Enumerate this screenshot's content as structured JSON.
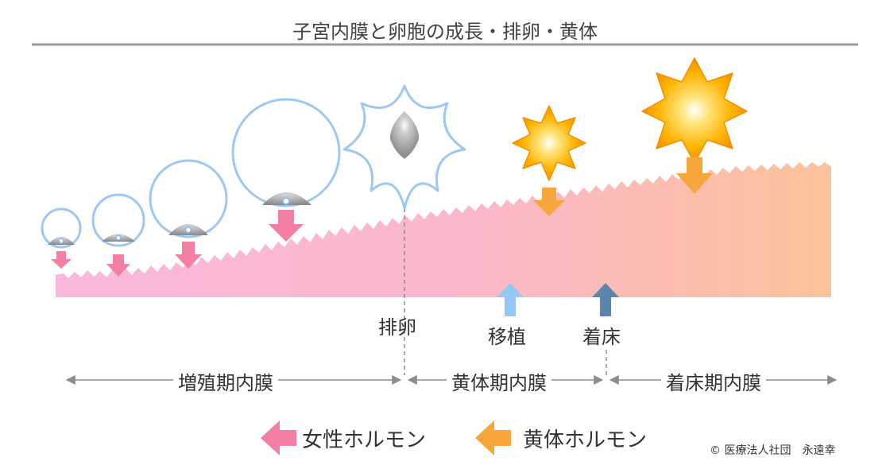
{
  "title": "子宮内膜と卵胞の成長・排卵・黄体",
  "labels": {
    "ovulation": "排卵",
    "transfer": "移植",
    "implantation": "着床"
  },
  "phases": {
    "proliferative": "増殖期内膜",
    "luteal": "黄体期内膜",
    "implantation": "着床期内膜"
  },
  "legend": {
    "female_hormone": "女性ホルモン",
    "luteal_hormone": "黄体ホルモン"
  },
  "copyright": "© 医療法人社団　永遠幸",
  "colors": {
    "female_hormone": "#f47fa3",
    "luteal_hormone": "#f6a63a",
    "follicle_outline": "#9cc8f2",
    "endometrium_start": "#f9b9dc",
    "endometrium_end": "#fbbd93",
    "transfer_arrow": "#94c9f4",
    "implantation_arrow": "#5a86ad",
    "timeline": "#8c8c8c"
  }
}
